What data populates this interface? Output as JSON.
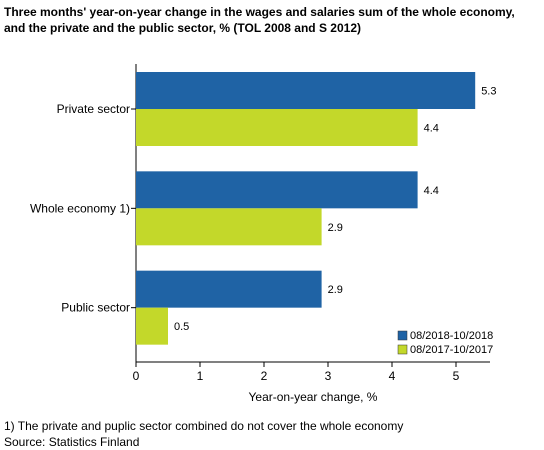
{
  "chart_data": {
    "type": "bar",
    "orientation": "horizontal",
    "title": "Three months' year-on-year change in the wages and salaries sum of the whole economy, and the private and the public sector, % (TOL 2008 and S 2012)",
    "title_lines": [
      "Three months' year-on-year change in the wages and salaries sum of the whole economy,",
      "and the private and the public sector, % (TOL 2008 and S 2012)"
    ],
    "categories": [
      "Private sector",
      "Whole economy 1)",
      "Public sector"
    ],
    "series": [
      {
        "name": "08/2018-10/2018",
        "color": "#1f63a5",
        "values": [
          5.3,
          4.4,
          2.9
        ]
      },
      {
        "name": "08/2017-10/2017",
        "color": "#c3d82a",
        "values": [
          4.4,
          2.9,
          0.5
        ]
      }
    ],
    "data_labels": [
      [
        "5.3",
        "4.4",
        "2.9"
      ],
      [
        "4.4",
        "2.9",
        "0.5"
      ]
    ],
    "xlabel": "Year-on-year change, %",
    "ylabel": "",
    "xlim": [
      0,
      5.5
    ],
    "xticks": [
      "0",
      "1",
      "2",
      "3",
      "4",
      "5"
    ],
    "grid": false,
    "legend_position": "bottom-right"
  },
  "footnotes": {
    "note": "1) The private and puplic sector combined do not cover the whole economy",
    "source": "Source: Statistics Finland"
  }
}
